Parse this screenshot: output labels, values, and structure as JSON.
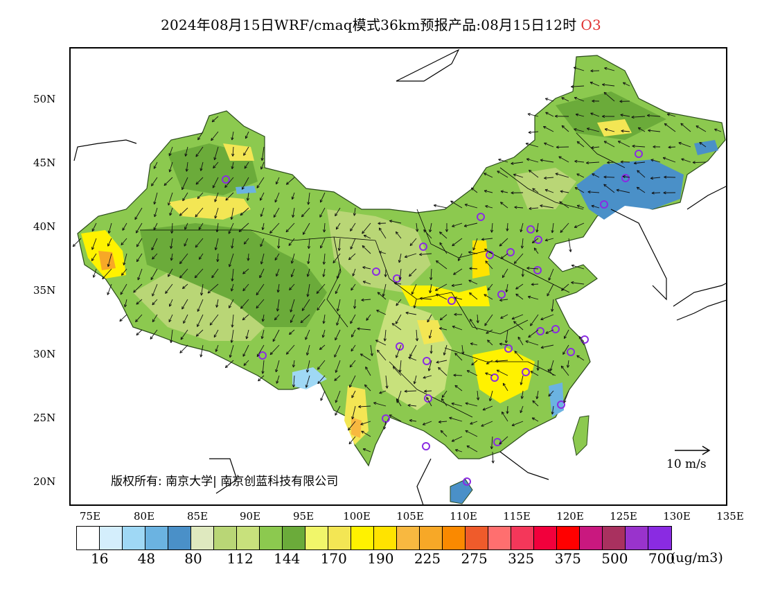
{
  "title": {
    "text": "2024年08月15日WRF/cmaq模式36km预报产品:08月15日12时",
    "pollutant": "O3",
    "pollutant_color": "#e03030"
  },
  "map": {
    "lat_labels": [
      "50N",
      "45N",
      "40N",
      "35N",
      "30N",
      "25N",
      "20N"
    ],
    "lon_labels": [
      "75E",
      "80E",
      "85E",
      "90E",
      "95E",
      "100E",
      "105E",
      "110E",
      "115E",
      "120E",
      "125E",
      "130E",
      "135E"
    ],
    "copyright": "版权所有: 南京大学| 南京创蓝科技有限公司",
    "wind_scale_label": "10 m/s"
  },
  "colorbar": {
    "colors": [
      "#ffffff",
      "#d4eefc",
      "#9fd8f5",
      "#6bb3e1",
      "#4a90c8",
      "#dfe9bf",
      "#b9d676",
      "#c8e17c",
      "#8cc94f",
      "#6bab3a",
      "#f1f66a",
      "#f3e654",
      "#fff200",
      "#ffe300",
      "#f8b840",
      "#f7a827",
      "#fa8900",
      "#ef5b2b",
      "#ff6f6f",
      "#f4375a",
      "#f2003c",
      "#ff0000",
      "#c9187f",
      "#a9315f",
      "#9933cc",
      "#8a2be2"
    ],
    "labels": [
      "16",
      "48",
      "80",
      "112",
      "144",
      "170",
      "190",
      "225",
      "275",
      "325",
      "375",
      "500",
      "700"
    ],
    "unit": "(ug/m3)"
  },
  "colors": {
    "low_blue": "#4a90c8",
    "green": "#8cc94f",
    "yellow": "#fff200",
    "orange": "#f7a827",
    "station_marker": "#8a2be2"
  }
}
